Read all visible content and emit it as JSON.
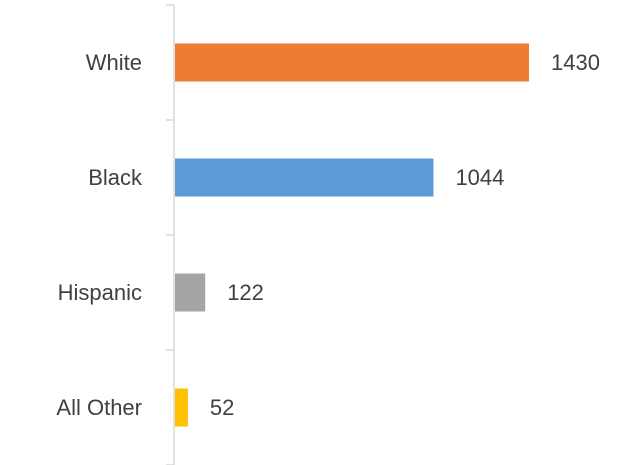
{
  "chart_data": {
    "type": "bar",
    "orientation": "horizontal",
    "title": "",
    "xlabel": "",
    "ylabel": "",
    "categories": [
      "White",
      "Black",
      "Hispanic",
      "All Other"
    ],
    "values": [
      1430,
      1044,
      122,
      52
    ],
    "colors": [
      "#ED7D31",
      "#5B9BD5",
      "#A5A5A5",
      "#FFC000"
    ],
    "xlim": [
      0,
      1430
    ],
    "grid": false,
    "legend": "none",
    "data_labels": true
  }
}
